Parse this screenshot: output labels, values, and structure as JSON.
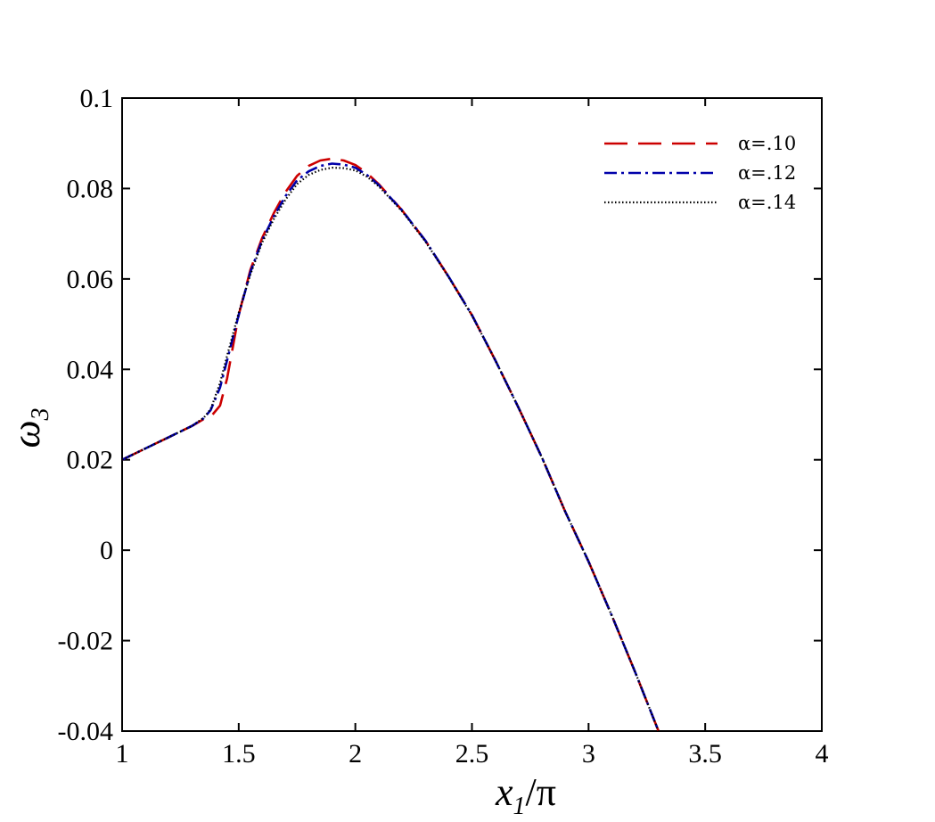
{
  "chart_data": {
    "type": "line",
    "title": "",
    "xlabel": "x",
    "xlabel_sub": "1",
    "xlabel_suffix": "/π",
    "ylabel": "ω",
    "ylabel_sub": "3",
    "xlim": [
      1,
      4
    ],
    "ylim": [
      -0.04,
      0.1
    ],
    "x_ticks": [
      1,
      1.5,
      2,
      2.5,
      3,
      3.5,
      4
    ],
    "x_tick_labels": [
      "1",
      "1.5",
      "2",
      "2.5",
      "3",
      "3.5",
      "4"
    ],
    "y_ticks": [
      -0.04,
      -0.02,
      0,
      0.02,
      0.04,
      0.06,
      0.08,
      0.1
    ],
    "y_tick_labels": [
      "-0.04",
      "-0.02",
      "0",
      "0.02",
      "0.04",
      "0.06",
      "0.08",
      "0.1"
    ],
    "grid": false,
    "legend_position": "top-right",
    "series": [
      {
        "name": "α=.10",
        "color": "#cc0000",
        "style": "dashed",
        "x": [
          1.0,
          1.1,
          1.2,
          1.3,
          1.35,
          1.38,
          1.42,
          1.45,
          1.5,
          1.55,
          1.6,
          1.65,
          1.7,
          1.75,
          1.8,
          1.85,
          1.9,
          1.95,
          2.0,
          2.05,
          2.1,
          2.2,
          2.3,
          2.4,
          2.5,
          2.6,
          2.7,
          2.8,
          2.9,
          3.0,
          3.1,
          3.2,
          3.3
        ],
        "y": [
          0.02,
          0.0225,
          0.025,
          0.0275,
          0.029,
          0.0295,
          0.032,
          0.038,
          0.052,
          0.062,
          0.069,
          0.0745,
          0.0792,
          0.0828,
          0.085,
          0.0862,
          0.0866,
          0.0862,
          0.0852,
          0.0834,
          0.081,
          0.0752,
          0.0685,
          0.0605,
          0.052,
          0.042,
          0.0315,
          0.0205,
          0.0085,
          -0.0025,
          -0.0145,
          -0.027,
          -0.04
        ]
      },
      {
        "name": "α=.12",
        "color": "#0000aa",
        "style": "dashdot",
        "x": [
          1.0,
          1.1,
          1.2,
          1.3,
          1.35,
          1.38,
          1.42,
          1.45,
          1.5,
          1.55,
          1.6,
          1.65,
          1.7,
          1.75,
          1.8,
          1.85,
          1.9,
          1.95,
          2.0,
          2.05,
          2.1,
          2.2,
          2.3,
          2.4,
          2.5,
          2.6,
          2.7,
          2.8,
          2.9,
          3.0,
          3.1,
          3.2,
          3.3
        ],
        "y": [
          0.02,
          0.0225,
          0.025,
          0.0275,
          0.0292,
          0.031,
          0.036,
          0.042,
          0.052,
          0.0615,
          0.0685,
          0.0738,
          0.0783,
          0.0818,
          0.0838,
          0.085,
          0.0855,
          0.0853,
          0.0846,
          0.083,
          0.0808,
          0.0752,
          0.0685,
          0.0605,
          0.052,
          0.042,
          0.0315,
          0.0205,
          0.0085,
          -0.0025,
          -0.0145,
          -0.027,
          -0.04
        ]
      },
      {
        "name": "α=.14",
        "color": "#000000",
        "style": "dotted",
        "x": [
          1.0,
          1.1,
          1.2,
          1.3,
          1.35,
          1.38,
          1.42,
          1.45,
          1.5,
          1.55,
          1.6,
          1.65,
          1.7,
          1.75,
          1.8,
          1.85,
          1.9,
          1.95,
          2.0,
          2.05,
          2.1,
          2.2,
          2.3,
          2.4,
          2.5,
          2.6,
          2.7,
          2.8,
          2.9,
          3.0,
          3.1,
          3.2,
          3.3
        ],
        "y": [
          0.02,
          0.0225,
          0.025,
          0.0275,
          0.0293,
          0.0312,
          0.037,
          0.043,
          0.0525,
          0.061,
          0.068,
          0.0732,
          0.0775,
          0.081,
          0.083,
          0.0841,
          0.0846,
          0.0845,
          0.084,
          0.0826,
          0.0805,
          0.075,
          0.0683,
          0.0604,
          0.0519,
          0.042,
          0.0315,
          0.0205,
          0.0085,
          -0.0025,
          -0.0145,
          -0.027,
          -0.04
        ]
      }
    ]
  }
}
